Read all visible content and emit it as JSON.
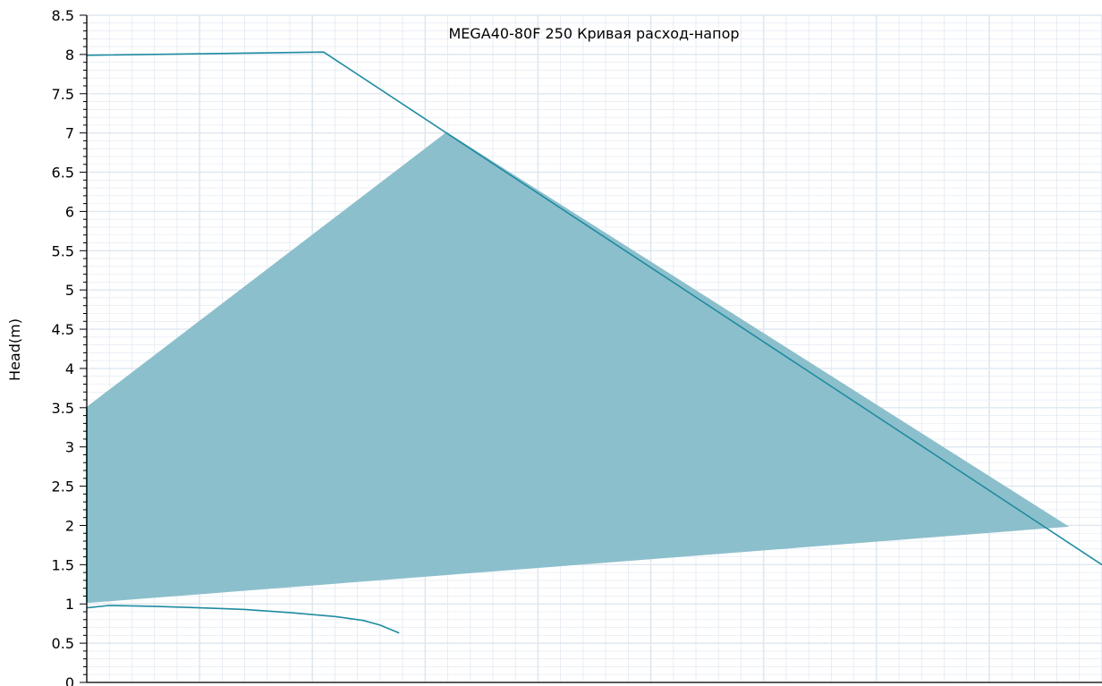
{
  "chart_data": {
    "type": "area",
    "title": "MEGA40-80F 250 Кривая расход-напор",
    "ylabel": "Head(m)",
    "xlabel": "",
    "ylim": [
      0,
      8.5
    ],
    "xlim": [
      0,
      9
    ],
    "yticks": [
      "0",
      "0.5",
      "1",
      "1.5",
      "2",
      "2.5",
      "3",
      "3.5",
      "4",
      "4.5",
      "5",
      "5.5",
      "6",
      "6.5",
      "7",
      "7.5",
      "8",
      "8.5"
    ],
    "grid": true,
    "colors": {
      "line": "#1e8ba0",
      "fill": "#8cbfcc",
      "grid": "#dfe7f0",
      "axis": "#000000"
    },
    "series": [
      {
        "kind": "area",
        "points": [
          [
            0,
            3.5
          ],
          [
            3.19,
            7.0
          ],
          [
            8.69,
            1.99
          ],
          [
            0,
            1.02
          ]
        ]
      },
      {
        "kind": "line",
        "points": [
          [
            0,
            7.99
          ],
          [
            2.1,
            8.03
          ],
          [
            9.0,
            1.5
          ]
        ]
      },
      {
        "kind": "line",
        "points": [
          [
            0,
            1.03
          ],
          [
            0,
            3.5
          ]
        ]
      },
      {
        "kind": "line",
        "points": [
          [
            0,
            0.95
          ],
          [
            0.2,
            0.98
          ],
          [
            0.6,
            0.97
          ],
          [
            1.0,
            0.95
          ],
          [
            1.4,
            0.93
          ],
          [
            1.8,
            0.89
          ],
          [
            2.2,
            0.84
          ],
          [
            2.45,
            0.79
          ],
          [
            2.6,
            0.73
          ],
          [
            2.77,
            0.63
          ]
        ]
      }
    ]
  }
}
